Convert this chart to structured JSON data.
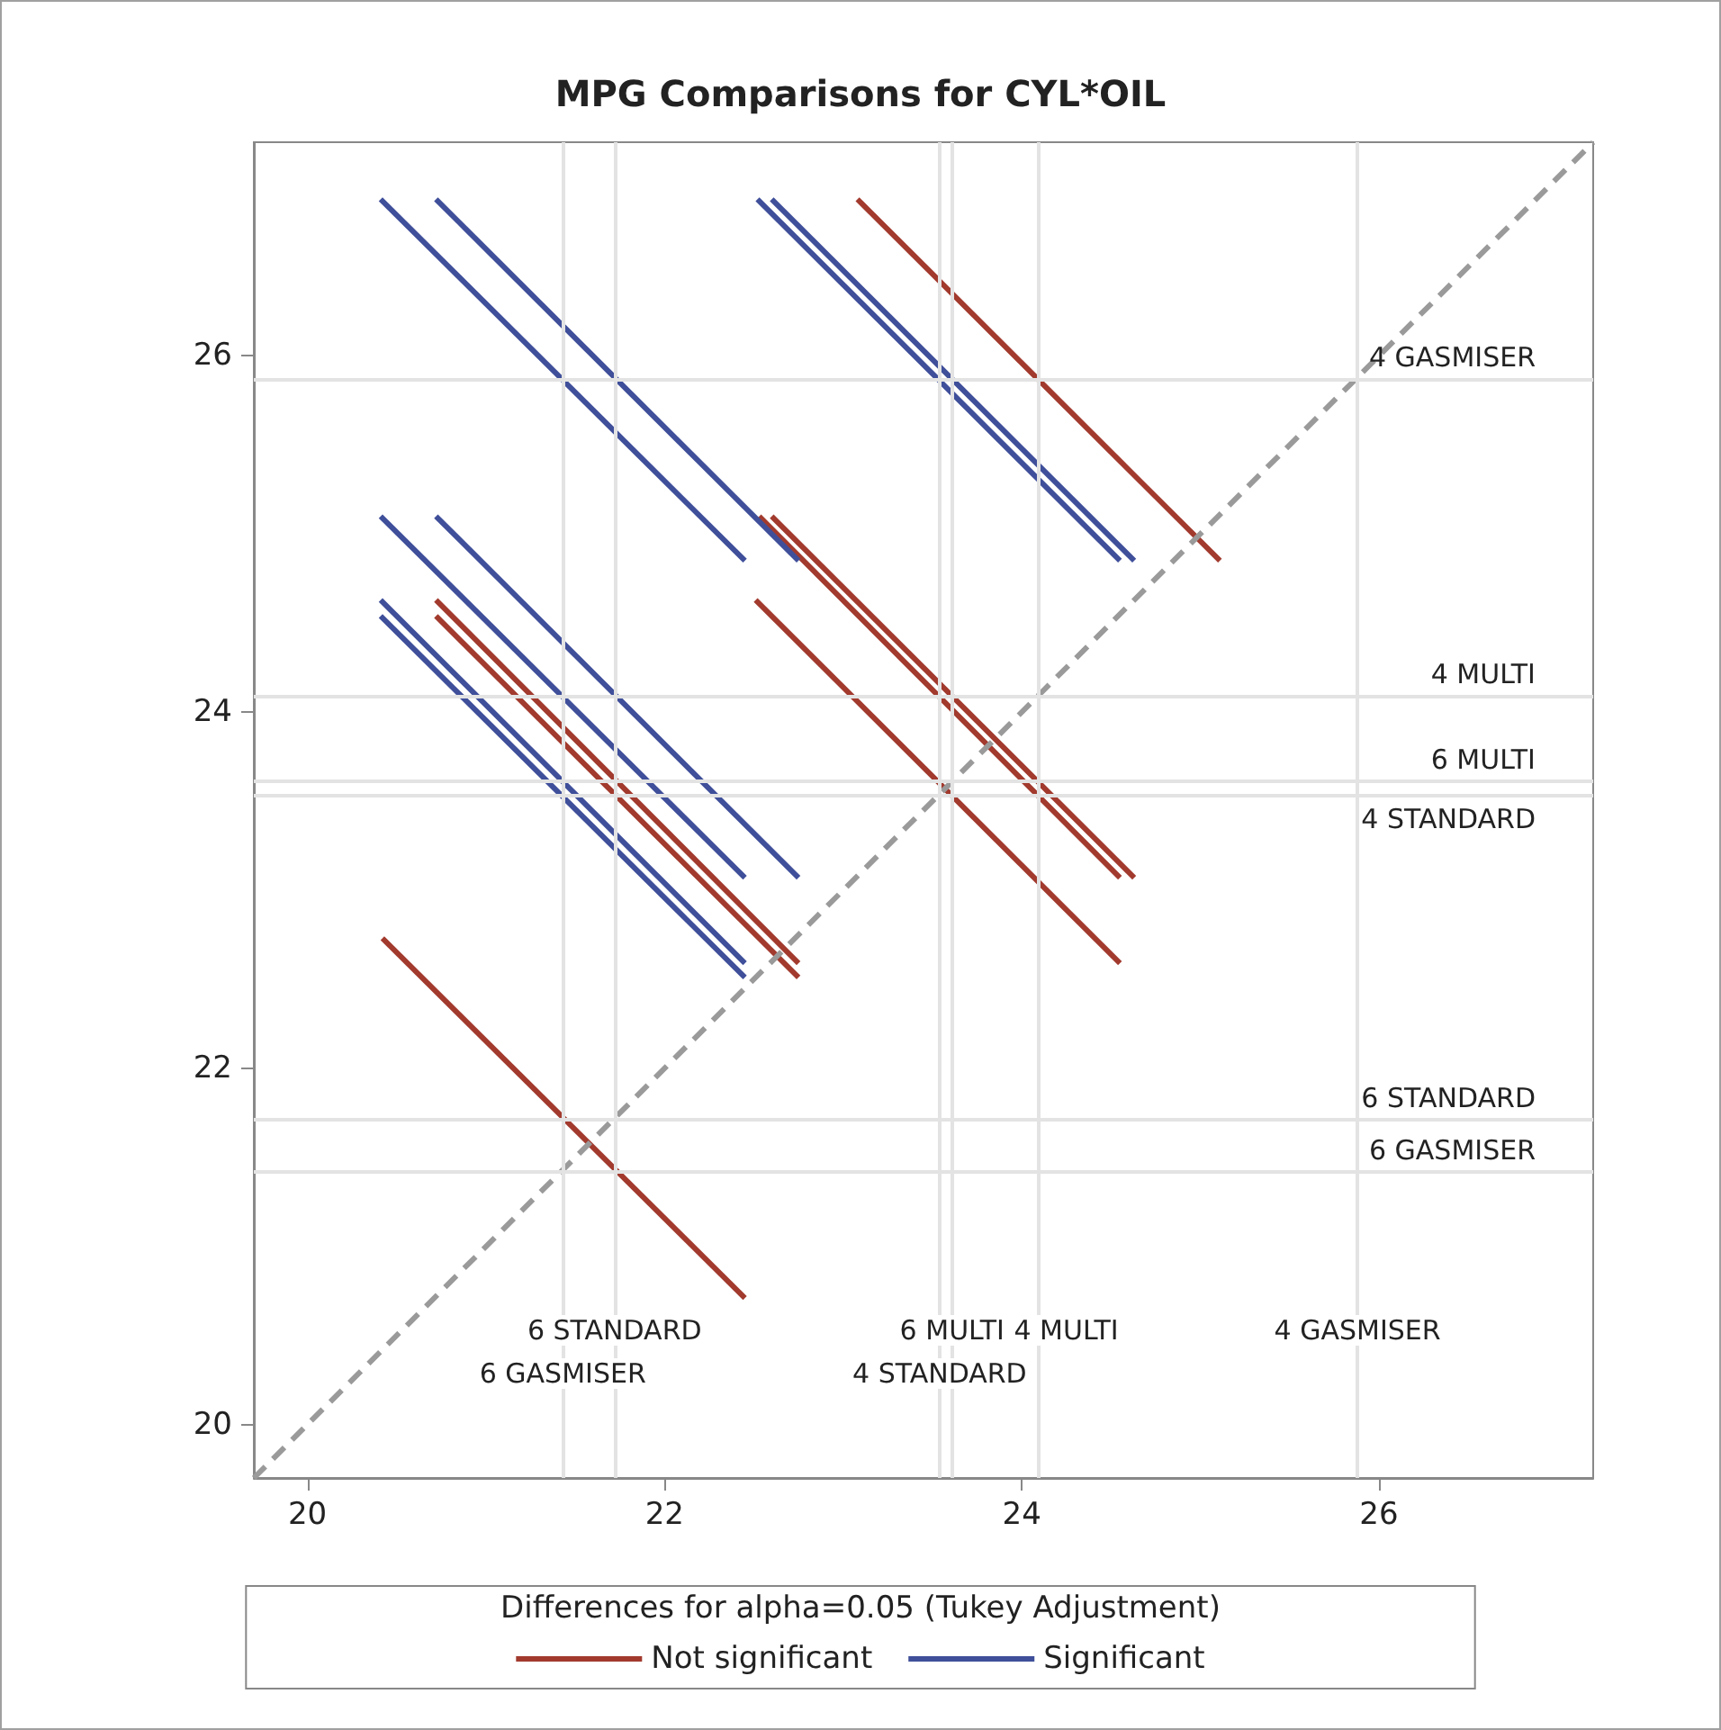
{
  "chart_data": {
    "type": "line",
    "title": "MPG Comparisons for CYL*OIL",
    "legend_title": "Differences for alpha=0.05 (Tukey Adjustment)",
    "xlim": [
      19.7,
      27.2
    ],
    "ylim": [
      19.7,
      27.2
    ],
    "xticks": [
      20,
      22,
      24,
      26
    ],
    "yticks": [
      20,
      22,
      24,
      26
    ],
    "grid": false,
    "legend": "bottom",
    "marker": "none",
    "line_style": "solid",
    "series": [
      {
        "name": "Not significant",
        "color": "#a23a2e",
        "x": [
          20.72,
          22.75
        ],
        "values": [
          24.63,
          22.59
        ]
      },
      {
        "color": "#a23a2e",
        "x": [
          20.72,
          22.75
        ],
        "values": [
          24.54,
          22.51
        ]
      },
      {
        "color": "#a23a2e",
        "x": [
          20.42,
          22.45
        ],
        "values": [
          22.73,
          20.71
        ]
      },
      {
        "color": "#a23a2e",
        "x": [
          23.08,
          25.11
        ],
        "values": [
          26.88,
          24.85
        ]
      },
      {
        "color": "#a23a2e",
        "x": [
          22.53,
          24.55
        ],
        "values": [
          25.1,
          23.07
        ]
      },
      {
        "color": "#a23a2e",
        "x": [
          22.6,
          24.63
        ],
        "values": [
          25.1,
          23.07
        ]
      },
      {
        "color": "#a23a2e",
        "x": [
          22.51,
          24.55
        ],
        "values": [
          24.63,
          22.59
        ]
      },
      {
        "name": "Significant",
        "color": "#3f4f9a",
        "x": [
          20.41,
          22.45
        ],
        "values": [
          26.88,
          24.85
        ]
      },
      {
        "color": "#3f4f9a",
        "x": [
          20.72,
          22.75
        ],
        "values": [
          26.88,
          24.85
        ]
      },
      {
        "color": "#3f4f9a",
        "x": [
          20.41,
          22.45
        ],
        "values": [
          25.1,
          23.07
        ]
      },
      {
        "color": "#3f4f9a",
        "x": [
          20.72,
          22.75
        ],
        "values": [
          25.1,
          23.07
        ]
      },
      {
        "color": "#3f4f9a",
        "x": [
          20.41,
          22.45
        ],
        "values": [
          24.63,
          22.59
        ]
      },
      {
        "color": "#3f4f9a",
        "x": [
          20.41,
          22.45
        ],
        "values": [
          24.54,
          22.51
        ]
      },
      {
        "color": "#3f4f9a",
        "x": [
          22.52,
          24.55
        ],
        "values": [
          26.88,
          24.85
        ]
      },
      {
        "color": "#3f4f9a",
        "x": [
          22.6,
          24.63
        ],
        "values": [
          26.88,
          24.85
        ]
      },
      {
        "color": "#9a9a9a",
        "line_style": "dashed",
        "x": [
          19.7,
          27.2
        ],
        "values": [
          19.7,
          27.2
        ]
      }
    ],
    "ref_lines": [
      {
        "axis": "x",
        "value": 21.72,
        "label": "6 STANDARD",
        "color": "#e3e3e3"
      },
      {
        "axis": "x",
        "value": 21.43,
        "label": "6 GASMISER",
        "color": "#e3e3e3"
      },
      {
        "axis": "x",
        "value": 23.61,
        "label": "6 MULTI",
        "color": "#e3e3e3"
      },
      {
        "axis": "x",
        "value": 23.54,
        "label": "4 STANDARD",
        "color": "#e3e3e3"
      },
      {
        "axis": "x",
        "value": 24.09,
        "label": "4 MULTI",
        "color": "#e3e3e3"
      },
      {
        "axis": "x",
        "value": 25.88,
        "label": "4 GASMISER",
        "color": "#e3e3e3"
      },
      {
        "axis": "y",
        "value": 25.87,
        "label": "4 GASMISER",
        "color": "#e3e3e3"
      },
      {
        "axis": "y",
        "value": 24.09,
        "label": "4 MULTI",
        "color": "#e3e3e3"
      },
      {
        "axis": "y",
        "value": 23.61,
        "label": "6 MULTI",
        "color": "#e3e3e3"
      },
      {
        "axis": "y",
        "value": 23.53,
        "label": "4 STANDARD",
        "color": "#e3e3e3"
      },
      {
        "axis": "y",
        "value": 21.71,
        "label": "6 STANDARD",
        "color": "#e3e3e3"
      },
      {
        "axis": "y",
        "value": 21.42,
        "label": "6 GASMISER",
        "color": "#e3e3e3"
      }
    ]
  }
}
